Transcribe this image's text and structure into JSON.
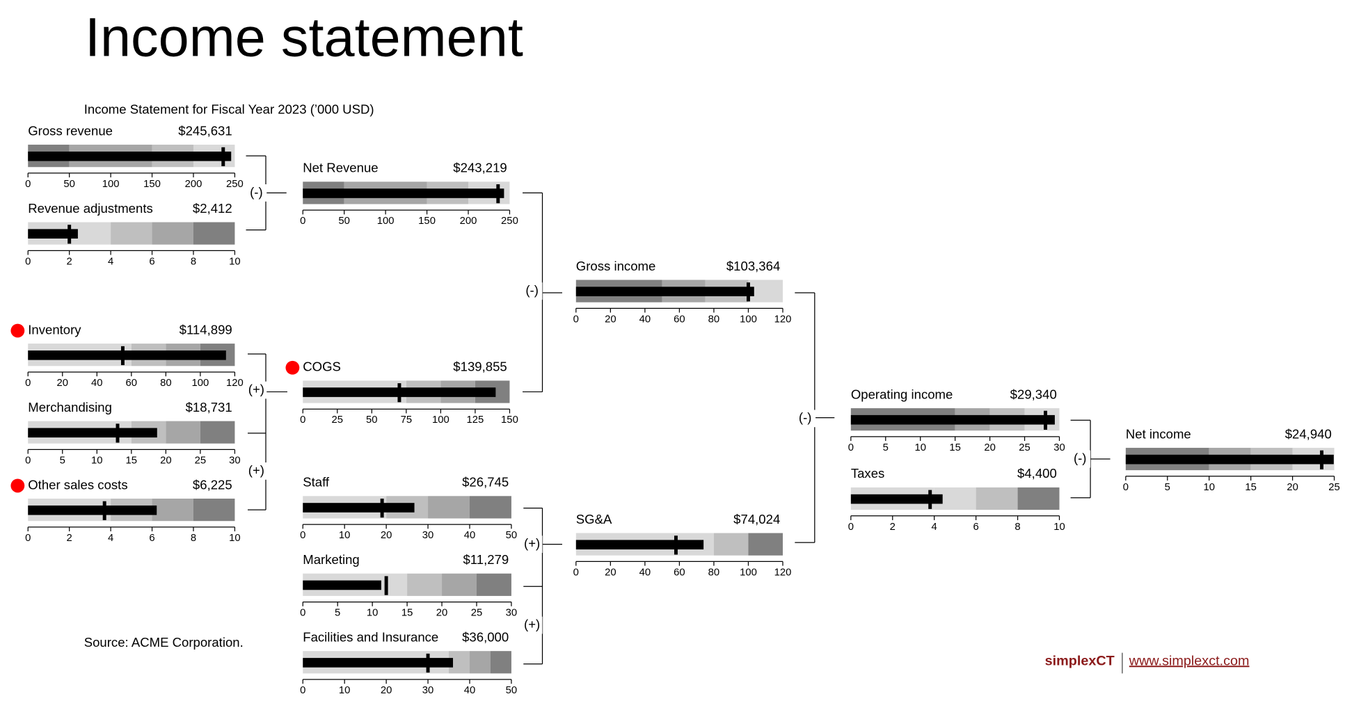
{
  "title": "Income statement",
  "subtitle": "Income Statement for Fiscal Year 2023 (’000 USD)",
  "source": "Source: ACME Corporation.",
  "brand": "simplexCT",
  "url": "www.simplexct.com",
  "operators": [
    "(-)",
    "(+)",
    "(+)",
    "(-)",
    "(+)",
    "(+)",
    "(-)",
    "(-)"
  ],
  "chart_data": [
    {
      "type": "bullet",
      "title": "Gross revenue",
      "values": [
        245.631
      ],
      "value_labels": [
        "$245,631"
      ],
      "target": 236,
      "bar_color": "#000000",
      "bands": [
        50,
        150,
        200,
        250
      ],
      "band_colors": [
        "#808080",
        "#a6a6a6",
        "#bfbfbf",
        "#d9d9d9"
      ],
      "xlim": [
        0,
        250
      ],
      "xticks": [
        0,
        50,
        100,
        150,
        200,
        250
      ]
    },
    {
      "type": "bullet",
      "title": "Revenue adjustments",
      "values": [
        2.412
      ],
      "value_labels": [
        "$2,412"
      ],
      "target": 2,
      "bar_color": "#000000",
      "bands": [
        4,
        6,
        8,
        10
      ],
      "band_colors": [
        "#d9d9d9",
        "#bfbfbf",
        "#a6a6a6",
        "#808080"
      ],
      "xlim": [
        0,
        10
      ],
      "xticks": [
        0,
        2,
        4,
        6,
        8,
        10
      ]
    },
    {
      "type": "bullet",
      "title": "Inventory",
      "values": [
        114.899
      ],
      "value_labels": [
        "$114,899"
      ],
      "target": 55,
      "bar_color": "#000000",
      "bands": [
        60,
        80,
        100,
        120
      ],
      "band_colors": [
        "#d9d9d9",
        "#bfbfbf",
        "#a6a6a6",
        "#808080"
      ],
      "xlim": [
        0,
        120
      ],
      "xticks": [
        0,
        20,
        40,
        60,
        80,
        100,
        120
      ]
    },
    {
      "type": "bullet",
      "title": "Merchandising",
      "values": [
        18.731
      ],
      "value_labels": [
        "$18,731"
      ],
      "target": 13,
      "bar_color": "#000000",
      "bands": [
        15,
        20,
        25,
        30
      ],
      "band_colors": [
        "#d9d9d9",
        "#bfbfbf",
        "#a6a6a6",
        "#808080"
      ],
      "xlim": [
        0,
        30
      ],
      "xticks": [
        0,
        5,
        10,
        15,
        20,
        25,
        30
      ]
    },
    {
      "type": "bullet",
      "title": "Other sales costs",
      "values": [
        6.225
      ],
      "value_labels": [
        "$6,225"
      ],
      "target": 3.7,
      "bar_color": "#000000",
      "bands": [
        4,
        6,
        8,
        10
      ],
      "band_colors": [
        "#d9d9d9",
        "#bfbfbf",
        "#a6a6a6",
        "#808080"
      ],
      "xlim": [
        0,
        10
      ],
      "xticks": [
        0,
        2,
        4,
        6,
        8,
        10
      ]
    },
    {
      "type": "bullet",
      "title": "Net Revenue",
      "values": [
        243.219
      ],
      "value_labels": [
        "$243,219"
      ],
      "target": 236,
      "bar_color": "#000000",
      "bands": [
        50,
        150,
        200,
        250
      ],
      "band_colors": [
        "#808080",
        "#a6a6a6",
        "#bfbfbf",
        "#d9d9d9"
      ],
      "xlim": [
        0,
        250
      ],
      "xticks": [
        0,
        50,
        100,
        150,
        200,
        250
      ]
    },
    {
      "type": "bullet",
      "title": "COGS",
      "values": [
        139.855
      ],
      "value_labels": [
        "$139,855"
      ],
      "target": 70,
      "bar_color": "#000000",
      "bands": [
        75,
        100,
        125,
        150
      ],
      "band_colors": [
        "#d9d9d9",
        "#bfbfbf",
        "#a6a6a6",
        "#808080"
      ],
      "xlim": [
        0,
        150
      ],
      "xticks": [
        0,
        25,
        50,
        75,
        100,
        125,
        150
      ]
    },
    {
      "type": "bullet",
      "title": "Staff",
      "values": [
        26.745
      ],
      "value_labels": [
        "$26,745"
      ],
      "target": 19,
      "bar_color": "#000000",
      "bands": [
        20,
        30,
        40,
        50
      ],
      "band_colors": [
        "#d9d9d9",
        "#bfbfbf",
        "#a6a6a6",
        "#808080"
      ],
      "xlim": [
        0,
        50
      ],
      "xticks": [
        0,
        10,
        20,
        30,
        40,
        50
      ]
    },
    {
      "type": "bullet",
      "title": "Marketing",
      "values": [
        11.279
      ],
      "value_labels": [
        "$11,279"
      ],
      "target": 12,
      "bar_color": "#000000",
      "bands": [
        15,
        20,
        25,
        30
      ],
      "band_colors": [
        "#d9d9d9",
        "#bfbfbf",
        "#a6a6a6",
        "#808080"
      ],
      "xlim": [
        0,
        30
      ],
      "xticks": [
        0,
        5,
        10,
        15,
        20,
        25,
        30
      ]
    },
    {
      "type": "bullet",
      "title": "Facilities and Insurance",
      "values": [
        36
      ],
      "value_labels": [
        "$36,000"
      ],
      "target": 30,
      "bar_color": "#000000",
      "bands": [
        35,
        40,
        45,
        50
      ],
      "band_colors": [
        "#d9d9d9",
        "#bfbfbf",
        "#a6a6a6",
        "#808080"
      ],
      "xlim": [
        0,
        50
      ],
      "xticks": [
        0,
        10,
        20,
        30,
        40,
        50
      ]
    },
    {
      "type": "bullet",
      "title": "Gross income",
      "values": [
        103.364
      ],
      "value_labels": [
        "$103,364"
      ],
      "target": 100,
      "bar_color": "#000000",
      "bands": [
        50,
        75,
        100,
        120
      ],
      "band_colors": [
        "#808080",
        "#a6a6a6",
        "#bfbfbf",
        "#d9d9d9"
      ],
      "xlim": [
        0,
        120
      ],
      "xticks": [
        0,
        20,
        40,
        60,
        80,
        100,
        120
      ]
    },
    {
      "type": "bullet",
      "title": "SG&A",
      "values": [
        74.024
      ],
      "value_labels": [
        "$74,024"
      ],
      "target": 58,
      "bar_color": "#000000",
      "bands": [
        80,
        100,
        120
      ],
      "band_colors": [
        "#d9d9d9",
        "#bfbfbf",
        "#808080"
      ],
      "xlim": [
        0,
        120
      ],
      "xticks": [
        0,
        20,
        40,
        60,
        80,
        100,
        120
      ]
    },
    {
      "type": "bullet",
      "title": "Operating income",
      "values": [
        29.34
      ],
      "value_labels": [
        "$29,340"
      ],
      "target": 28,
      "bar_color": "#000000",
      "bands": [
        15,
        20,
        25,
        30
      ],
      "band_colors": [
        "#808080",
        "#a6a6a6",
        "#bfbfbf",
        "#d9d9d9"
      ],
      "xlim": [
        0,
        30
      ],
      "xticks": [
        0,
        5,
        10,
        15,
        20,
        25,
        30
      ]
    },
    {
      "type": "bullet",
      "title": "Taxes",
      "values": [
        4.4
      ],
      "value_labels": [
        "$4,400"
      ],
      "target": 3.8,
      "bar_color": "#000000",
      "bands": [
        4,
        6,
        8,
        10
      ],
      "band_colors": [
        "#d9d9d9",
        "#d9d9d9",
        "#bfbfbf",
        "#808080"
      ],
      "xlim": [
        0,
        10
      ],
      "xticks": [
        0,
        2,
        4,
        6,
        8,
        10
      ]
    },
    {
      "type": "bullet",
      "title": "Net income",
      "values": [
        24.94
      ],
      "value_labels": [
        "$24,940"
      ],
      "target": 23.5,
      "bar_color": "#000000",
      "bands": [
        10,
        15,
        20,
        25
      ],
      "band_colors": [
        "#808080",
        "#a6a6a6",
        "#bfbfbf",
        "#d9d9d9"
      ],
      "xlim": [
        0,
        25
      ],
      "xticks": [
        0,
        5,
        10,
        15,
        20,
        25
      ]
    }
  ]
}
